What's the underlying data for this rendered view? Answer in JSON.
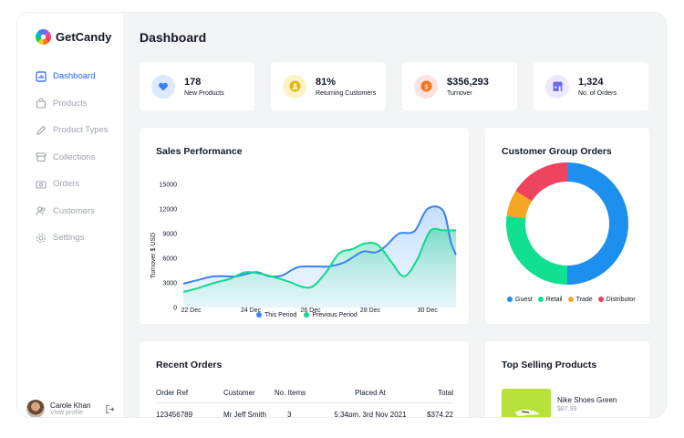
{
  "app": {
    "name": "GetCandy"
  },
  "sidebar": {
    "items": [
      {
        "label": "Dashboard",
        "icon": "dashboard-icon",
        "active": true
      },
      {
        "label": "Products",
        "icon": "bag-icon",
        "active": false
      },
      {
        "label": "Product Types",
        "icon": "pencil-icon",
        "active": false
      },
      {
        "label": "Collections",
        "icon": "archive-icon",
        "active": false
      },
      {
        "label": "Orders",
        "icon": "cash-icon",
        "active": false
      },
      {
        "label": "Customers",
        "icon": "users-icon",
        "active": false
      },
      {
        "label": "Settings",
        "icon": "gear-icon",
        "active": false
      }
    ]
  },
  "user": {
    "name": "Carole Khan",
    "sub": "View profile"
  },
  "page": {
    "title": "Dashboard"
  },
  "stats": [
    {
      "value": "178",
      "label": "New Products",
      "icon": "heart-icon",
      "color": "#3b82f6",
      "bg": "#dbeafe"
    },
    {
      "value": "81%",
      "label": "Returning Customers",
      "icon": "user-icon",
      "color": "#eab308",
      "bg": "#fef3c7"
    },
    {
      "value": "$356,293",
      "label": "Turnover",
      "icon": "coin-icon",
      "color": "#f97316",
      "bg": "#fee2e2"
    },
    {
      "value": "1,324",
      "label": "No. of Orders",
      "icon": "store-icon",
      "color": "#6366f1",
      "bg": "#ede9fe"
    }
  ],
  "sales": {
    "title": "Sales Performance",
    "ylabel": "Turnover $ USD",
    "this_color": "#3b82f6",
    "prev_color": "#10d98c"
  },
  "chart_data": [
    {
      "type": "line",
      "title": "Sales Performance",
      "ylabel": "Turnover $ USD",
      "ylim": [
        0,
        15000
      ],
      "yticks": [
        0,
        3000,
        6000,
        9000,
        12000,
        15000
      ],
      "xlim": [
        0,
        10.5
      ],
      "x_ticks": [
        {
          "x": 0.3,
          "label": "22 Dec"
        },
        {
          "x": 2.6,
          "label": "24 Dec"
        },
        {
          "x": 4.9,
          "label": "26 Dec"
        },
        {
          "x": 7.2,
          "label": "28 Dec"
        },
        {
          "x": 9.4,
          "label": "30 Dec"
        }
      ],
      "series": [
        {
          "name": "This Period",
          "x": [
            0,
            0.5,
            1.2,
            2.0,
            2.8,
            3.3,
            3.8,
            4.4,
            5.1,
            5.6,
            6.2,
            6.9,
            7.4,
            7.8,
            8.3,
            8.9,
            9.4,
            10.0,
            10.3,
            10.5
          ],
          "values": [
            2900,
            3300,
            3800,
            3800,
            4300,
            3800,
            3900,
            4900,
            5000,
            5000,
            5500,
            6800,
            6700,
            7500,
            9000,
            9300,
            12000,
            11800,
            8000,
            6400
          ]
        },
        {
          "name": "Previous Period",
          "x": [
            0,
            0.5,
            1.2,
            1.8,
            2.4,
            3.0,
            3.6,
            4.1,
            4.6,
            5.0,
            5.5,
            6.0,
            6.5,
            7.0,
            7.5,
            8.0,
            8.5,
            9.0,
            9.5,
            10.0,
            10.5
          ],
          "values": [
            1900,
            2300,
            3000,
            3500,
            4300,
            4100,
            3600,
            3100,
            2500,
            2600,
            4300,
            6600,
            7100,
            7800,
            7600,
            5600,
            3800,
            5800,
            9300,
            9400,
            9400
          ]
        }
      ]
    },
    {
      "type": "pie",
      "title": "Customer Group Orders",
      "categories": [
        "Guest",
        "Retail",
        "Trade",
        "Distributor"
      ],
      "values": [
        50,
        27,
        7,
        16
      ],
      "colors": [
        "#1d8fef",
        "#10e08f",
        "#f5a623",
        "#ef4460"
      ]
    }
  ],
  "customer_groups": {
    "title": "Customer Group Orders"
  },
  "recent_orders": {
    "title": "Recent Orders",
    "columns": [
      "Order Ref",
      "Customer",
      "No. Items",
      "Placed At",
      "Total"
    ],
    "rows": [
      {
        "ref": "123456789",
        "customer": "Mr Jeff Smith",
        "items": "3",
        "placed": "5:34pm, 3rd Nov 2021",
        "total": "$374.22"
      }
    ]
  },
  "top_products": {
    "title": "Top Selling Products",
    "items": [
      {
        "name": "Nike Shoes Green",
        "price": "$87.99"
      }
    ]
  }
}
